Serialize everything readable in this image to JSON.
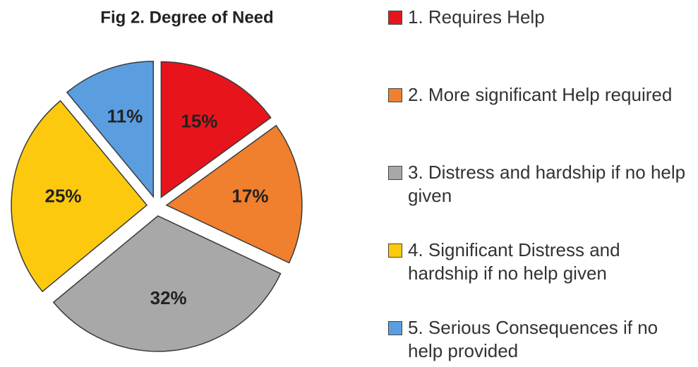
{
  "chart_data": {
    "type": "pie",
    "title": "Fig 2. Degree of Need",
    "categories": [
      "1. Requires Help",
      "2. More significant Help required",
      "3. Distress and hardship if no help given",
      "4. Significant Distress and hardship if no help given",
      "5. Serious Consequences if no help provided"
    ],
    "values": [
      15,
      17,
      32,
      25,
      11
    ],
    "value_labels": [
      "15%",
      "17%",
      "32%",
      "25%",
      "11%"
    ],
    "colors": [
      "#e8141c",
      "#f07f2e",
      "#a8a8a8",
      "#fdc90f",
      "#5a9ee0"
    ],
    "legend": "right"
  }
}
